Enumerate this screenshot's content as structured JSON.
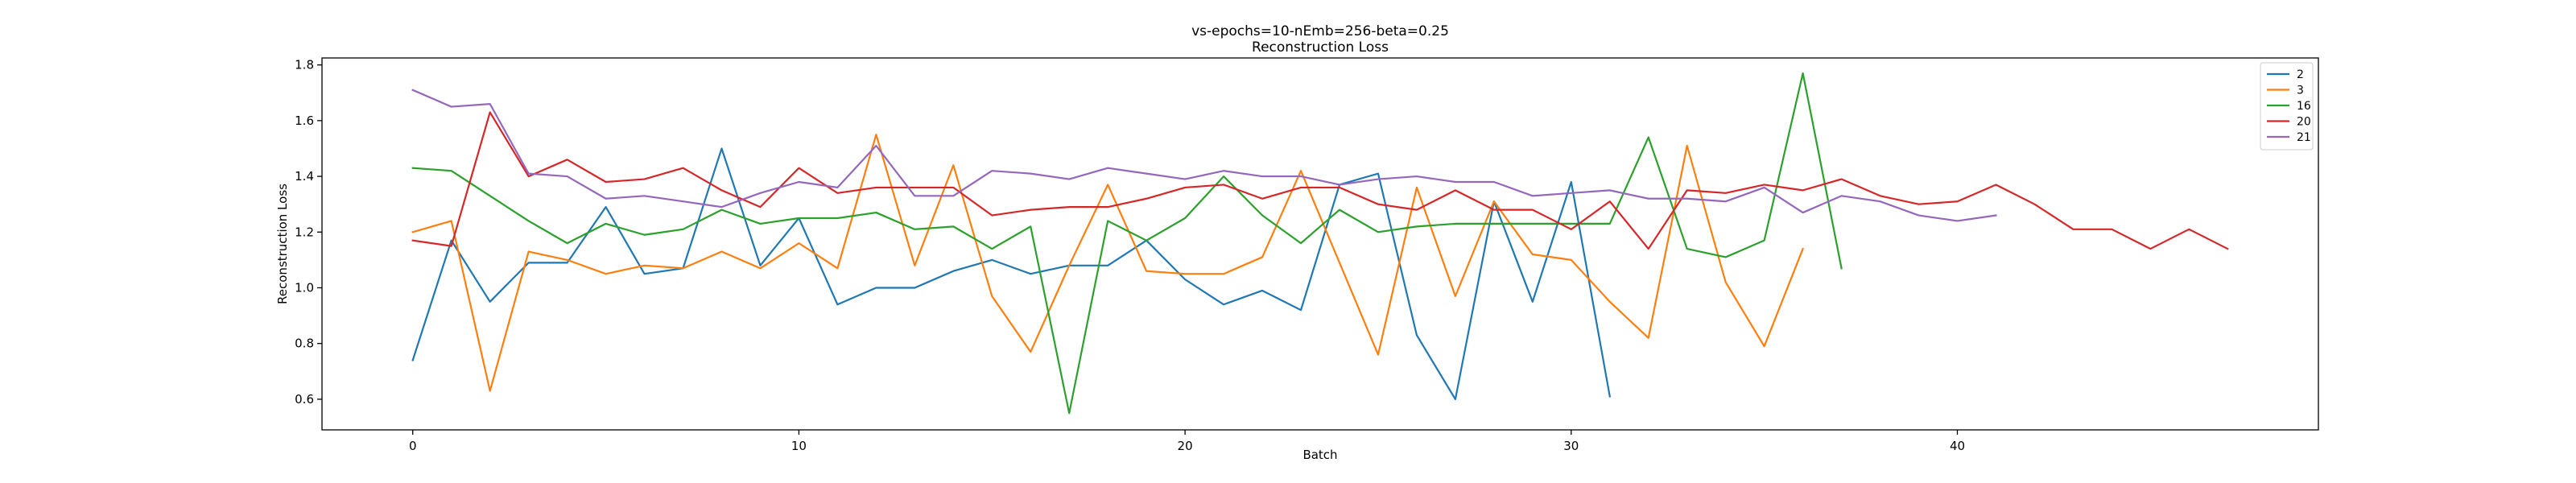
{
  "chart_data": {
    "type": "line",
    "title": "vs-epochs=10-nEmb=256-beta=0.25",
    "subtitle": "Reconstruction Loss",
    "xlabel": "Batch",
    "ylabel": "Reconstruction Loss",
    "xlim": [
      -2.35,
      49.35
    ],
    "ylim": [
      0.49,
      1.825
    ],
    "xticks": [
      0,
      10,
      20,
      30,
      40
    ],
    "yticks": [
      0.6,
      0.8,
      1.0,
      1.2,
      1.4,
      1.6,
      1.8
    ],
    "xtick_labels": [
      "0",
      "10",
      "20",
      "30",
      "40"
    ],
    "ytick_labels": [
      "0.6",
      "0.8",
      "1.0",
      "1.2",
      "1.4",
      "1.6",
      "1.8"
    ],
    "grid": false,
    "legend_position": "top-right",
    "series": [
      {
        "name": "2",
        "color": "#1f77b4",
        "values": [
          0.74,
          1.17,
          0.95,
          1.09,
          1.09,
          1.29,
          1.05,
          1.07,
          1.5,
          1.08,
          1.25,
          0.94,
          1.0,
          1.0,
          1.06,
          1.1,
          1.05,
          1.08,
          1.08,
          1.17,
          1.03,
          0.94,
          0.99,
          0.92,
          1.37,
          1.41,
          0.83,
          0.6,
          1.31,
          0.95,
          1.38,
          0.61
        ]
      },
      {
        "name": "3",
        "color": "#ff7f0e",
        "values": [
          1.2,
          1.24,
          0.63,
          1.13,
          1.1,
          1.05,
          1.08,
          1.07,
          1.13,
          1.07,
          1.16,
          1.07,
          1.55,
          1.08,
          1.44,
          0.97,
          0.77,
          1.08,
          1.37,
          1.06,
          1.05,
          1.05,
          1.11,
          1.42,
          1.09,
          0.76,
          1.36,
          0.97,
          1.31,
          1.12,
          1.1,
          0.95,
          0.82,
          1.51,
          1.02,
          0.79,
          1.14
        ]
      },
      {
        "name": "16",
        "color": "#2ca02c",
        "values": [
          1.43,
          1.42,
          1.33,
          1.24,
          1.16,
          1.23,
          1.19,
          1.21,
          1.28,
          1.23,
          1.25,
          1.25,
          1.27,
          1.21,
          1.22,
          1.14,
          1.22,
          0.55,
          1.24,
          1.17,
          1.25,
          1.4,
          1.26,
          1.16,
          1.28,
          1.2,
          1.22,
          1.23,
          1.23,
          1.23,
          1.23,
          1.23,
          1.54,
          1.14,
          1.11,
          1.17,
          1.77,
          1.07
        ]
      },
      {
        "name": "20",
        "color": "#d62728",
        "values": [
          1.17,
          1.15,
          1.63,
          1.4,
          1.46,
          1.38,
          1.39,
          1.43,
          1.35,
          1.29,
          1.43,
          1.34,
          1.36,
          1.36,
          1.36,
          1.26,
          1.28,
          1.29,
          1.29,
          1.32,
          1.36,
          1.37,
          1.32,
          1.36,
          1.36,
          1.3,
          1.28,
          1.35,
          1.28,
          1.28,
          1.21,
          1.31,
          1.14,
          1.35,
          1.34,
          1.37,
          1.35,
          1.39,
          1.33,
          1.3,
          1.31,
          1.37,
          1.3,
          1.21,
          1.21,
          1.14,
          1.21,
          1.14
        ]
      },
      {
        "name": "21",
        "color": "#9467bd",
        "values": [
          1.71,
          1.65,
          1.66,
          1.41,
          1.4,
          1.32,
          1.33,
          1.31,
          1.29,
          1.34,
          1.38,
          1.36,
          1.51,
          1.33,
          1.33,
          1.42,
          1.41,
          1.39,
          1.43,
          1.41,
          1.39,
          1.42,
          1.4,
          1.4,
          1.37,
          1.39,
          1.4,
          1.38,
          1.38,
          1.33,
          1.34,
          1.35,
          1.32,
          1.32,
          1.31,
          1.36,
          1.27,
          1.33,
          1.31,
          1.26,
          1.24,
          1.26
        ]
      }
    ]
  }
}
